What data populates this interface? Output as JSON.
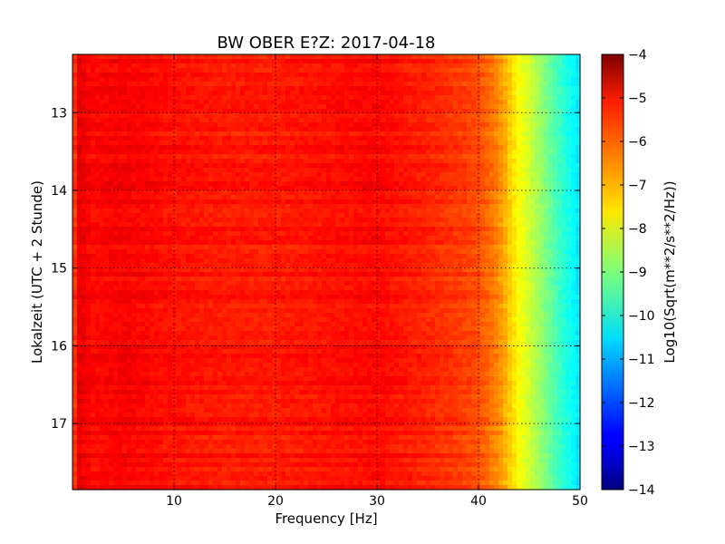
{
  "chart_data": {
    "type": "heatmap",
    "title": "BW OBER E?Z: 2017-04-18",
    "xlabel": "Frequency [Hz]",
    "ylabel": "Lokalzeit (UTC + 2 Stunde)",
    "colorbar_label": "Log10(Sqrt(m**2/s**2/Hz))",
    "colormap": "jet",
    "xlim": [
      0,
      50
    ],
    "ylim": [
      12.25,
      17.85
    ],
    "y_inverted": true,
    "clim": [
      -14,
      -4
    ],
    "grid": true,
    "x_ticks": [
      10,
      20,
      30,
      40,
      50
    ],
    "x_tick_labels": [
      "10",
      "20",
      "30",
      "40",
      "50"
    ],
    "y_ticks": [
      13,
      14,
      15,
      16,
      17
    ],
    "y_tick_labels": [
      "13",
      "14",
      "15",
      "16",
      "17"
    ],
    "colorbar_ticks": [
      -4,
      -5,
      -6,
      -7,
      -8,
      -9,
      -10,
      -11,
      -12,
      -13,
      -14
    ],
    "colorbar_tick_labels": [
      "−4",
      "−5",
      "−6",
      "−7",
      "−8",
      "−9",
      "−10",
      "−11",
      "−12",
      "−13",
      "−14"
    ],
    "frequency_profile": {
      "frequency_hz": [
        0,
        0.5,
        2,
        5,
        10,
        15,
        20,
        25,
        30,
        35,
        38,
        40,
        42,
        43,
        44,
        45,
        46,
        47,
        48,
        49,
        50
      ],
      "log10_amplitude": [
        -6.3,
        -5.0,
        -5.3,
        -5.2,
        -5.4,
        -5.5,
        -5.5,
        -5.4,
        -5.3,
        -5.6,
        -5.8,
        -6.0,
        -6.6,
        -7.2,
        -7.8,
        -8.2,
        -8.7,
        -9.2,
        -9.7,
        -10.1,
        -10.5
      ]
    }
  }
}
